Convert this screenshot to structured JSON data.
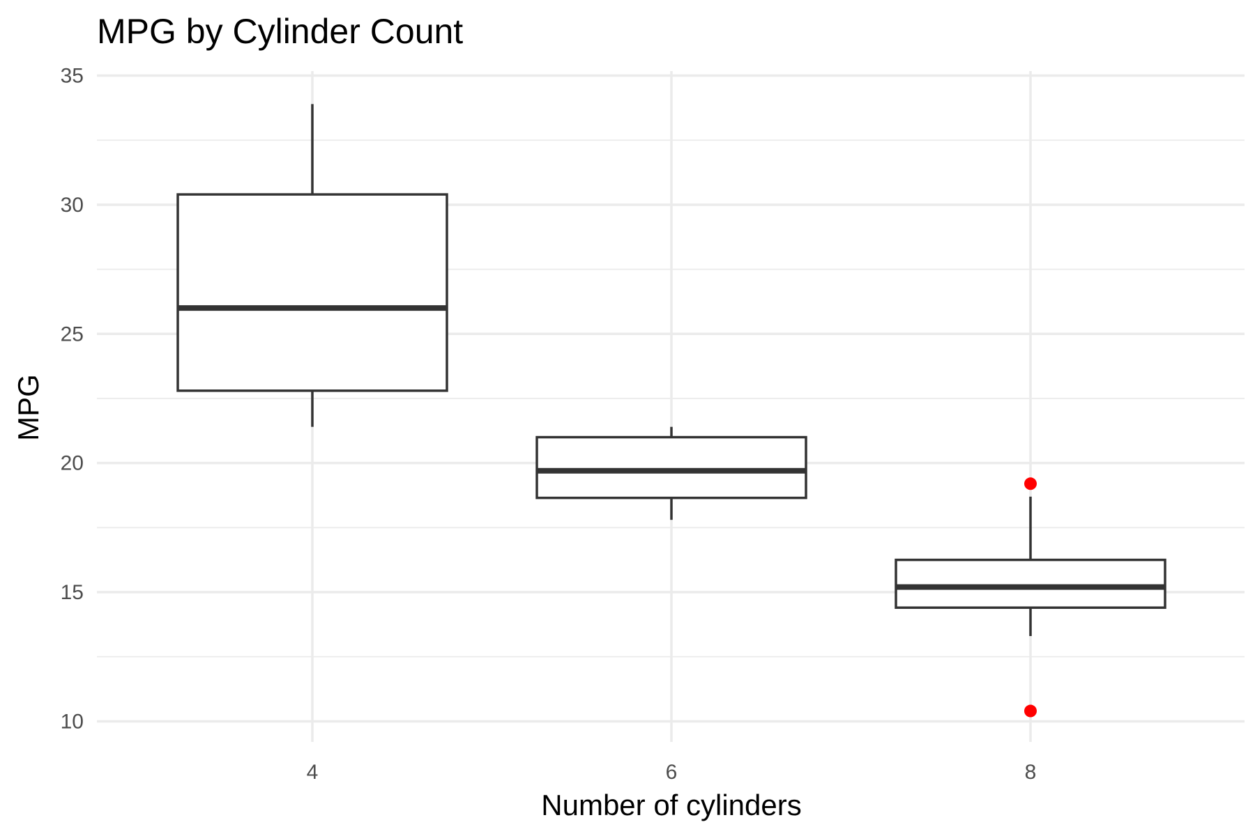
{
  "chart_data": {
    "type": "boxplot",
    "title": "MPG by Cylinder Count",
    "xlabel": "Number of cylinders",
    "ylabel": "MPG",
    "categories": [
      "4",
      "6",
      "8"
    ],
    "ylim": [
      9.2,
      35.5
    ],
    "y_ticks": [
      10,
      15,
      20,
      25,
      30,
      35
    ],
    "y_minor_ticks": [
      12.5,
      17.5,
      22.5,
      27.5,
      32.5
    ],
    "grid": true,
    "outlier_color": "#ff0000",
    "box_stroke_color": "#333333",
    "boxes": [
      {
        "category": "4",
        "min": 21.4,
        "q1": 22.8,
        "median": 26.0,
        "q3": 30.4,
        "max": 33.9,
        "outliers": []
      },
      {
        "category": "6",
        "min": 17.8,
        "q1": 18.65,
        "median": 19.7,
        "q3": 21.0,
        "max": 21.4,
        "outliers": []
      },
      {
        "category": "8",
        "min": 13.3,
        "q1": 14.4,
        "median": 15.2,
        "q3": 16.25,
        "max": 18.7,
        "outliers": [
          19.2,
          10.4
        ]
      }
    ]
  }
}
